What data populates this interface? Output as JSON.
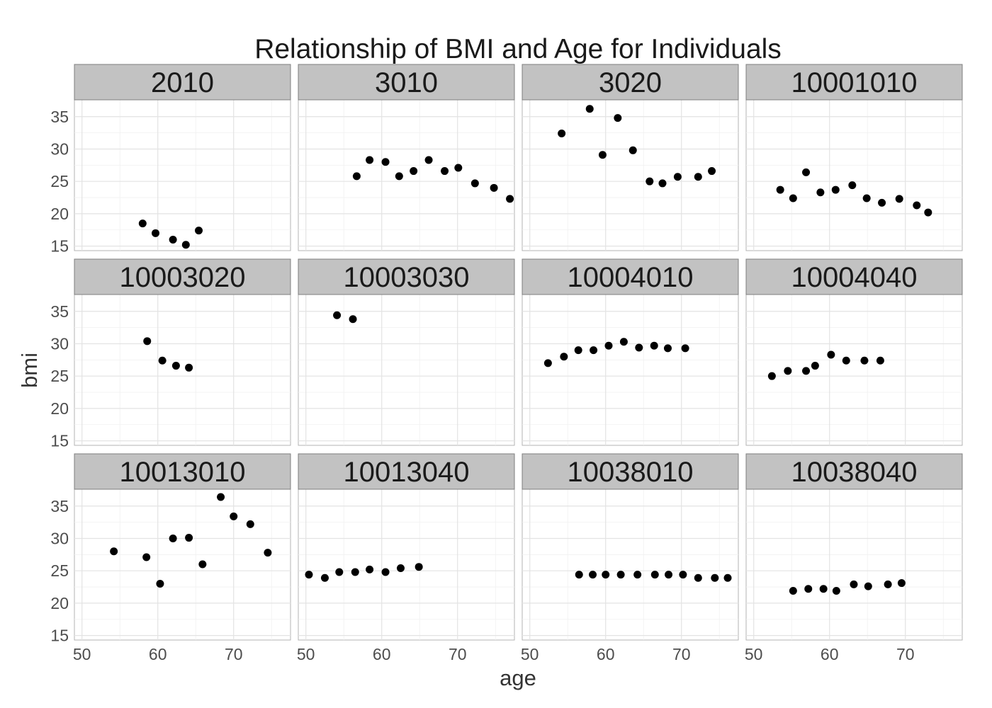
{
  "chart_data": {
    "type": "scatter",
    "title": "Relationship of BMI and Age for Individuals",
    "xlabel": "age",
    "ylabel": "bmi",
    "xlim": [
      49,
      77.5
    ],
    "ylim": [
      14.3,
      37.6
    ],
    "xticks": [
      50,
      60,
      70
    ],
    "yticks": [
      15,
      20,
      25,
      30,
      35
    ],
    "grid": true,
    "facet_layout": {
      "rows": 3,
      "cols": 4,
      "shared_axes": true
    },
    "panels": [
      {
        "label": "2010",
        "x": [
          58.0,
          59.7,
          62.0,
          63.7,
          65.4
        ],
        "y": [
          18.5,
          17.0,
          16.0,
          15.2,
          17.4
        ]
      },
      {
        "label": "3010",
        "x": [
          56.7,
          58.4,
          60.5,
          62.3,
          64.2,
          66.2,
          68.3,
          70.1,
          72.3,
          74.8,
          76.9
        ],
        "y": [
          25.8,
          28.3,
          28.0,
          25.8,
          26.6,
          28.3,
          26.6,
          27.1,
          24.7,
          24.0,
          22.3
        ]
      },
      {
        "label": "3020",
        "x": [
          54.2,
          57.9,
          59.6,
          61.6,
          63.6,
          65.8,
          67.5,
          69.5,
          72.2,
          74.0
        ],
        "y": [
          32.4,
          36.2,
          29.1,
          34.8,
          29.8,
          25.0,
          24.7,
          25.7,
          25.7,
          26.6
        ]
      },
      {
        "label": "10001010",
        "x": [
          53.5,
          55.2,
          56.9,
          58.8,
          60.8,
          63.0,
          64.9,
          66.9,
          69.2,
          71.5,
          73.0
        ],
        "y": [
          23.7,
          22.4,
          26.4,
          23.3,
          23.7,
          24.4,
          22.4,
          21.7,
          22.3,
          21.3,
          20.2
        ]
      },
      {
        "label": "10003020",
        "x": [
          58.6,
          60.6,
          62.4,
          64.1
        ],
        "y": [
          30.4,
          27.4,
          26.6,
          26.3
        ]
      },
      {
        "label": "10003030",
        "x": [
          54.1,
          56.2
        ],
        "y": [
          34.4,
          33.8
        ]
      },
      {
        "label": "10004010",
        "x": [
          52.4,
          54.5,
          56.4,
          58.4,
          60.4,
          62.4,
          64.4,
          66.4,
          68.2,
          70.5
        ],
        "y": [
          27.0,
          28.0,
          29.0,
          29.0,
          29.7,
          30.3,
          29.4,
          29.7,
          29.3,
          29.3
        ]
      },
      {
        "label": "10004040",
        "x": [
          52.4,
          54.5,
          56.9,
          58.1,
          60.2,
          62.2,
          64.6,
          66.7
        ],
        "y": [
          25.0,
          25.8,
          25.8,
          26.6,
          28.3,
          27.4,
          27.4,
          27.4
        ]
      },
      {
        "label": "10013010",
        "x": [
          54.2,
          58.5,
          60.3,
          62.0,
          64.1,
          65.9,
          68.3,
          70.0,
          72.2,
          74.5
        ],
        "y": [
          28.0,
          27.1,
          23.0,
          30.0,
          30.1,
          26.0,
          36.4,
          33.4,
          32.2,
          27.8
        ]
      },
      {
        "label": "10013040",
        "x": [
          50.4,
          52.5,
          54.4,
          56.5,
          58.4,
          60.5,
          62.5,
          64.9
        ],
        "y": [
          24.4,
          23.9,
          24.8,
          24.8,
          25.2,
          24.8,
          25.4,
          25.6
        ]
      },
      {
        "label": "10038010",
        "x": [
          56.5,
          58.3,
          60.0,
          62.0,
          64.2,
          66.5,
          68.3,
          70.2,
          72.2,
          74.4,
          76.1
        ],
        "y": [
          24.4,
          24.4,
          24.4,
          24.4,
          24.4,
          24.4,
          24.4,
          24.4,
          23.9,
          23.9,
          23.9
        ]
      },
      {
        "label": "10038040",
        "x": [
          55.2,
          57.2,
          59.2,
          60.9,
          63.2,
          65.1,
          67.7,
          69.5
        ],
        "y": [
          21.9,
          22.2,
          22.2,
          21.9,
          22.9,
          22.6,
          22.9,
          23.1
        ]
      }
    ]
  }
}
